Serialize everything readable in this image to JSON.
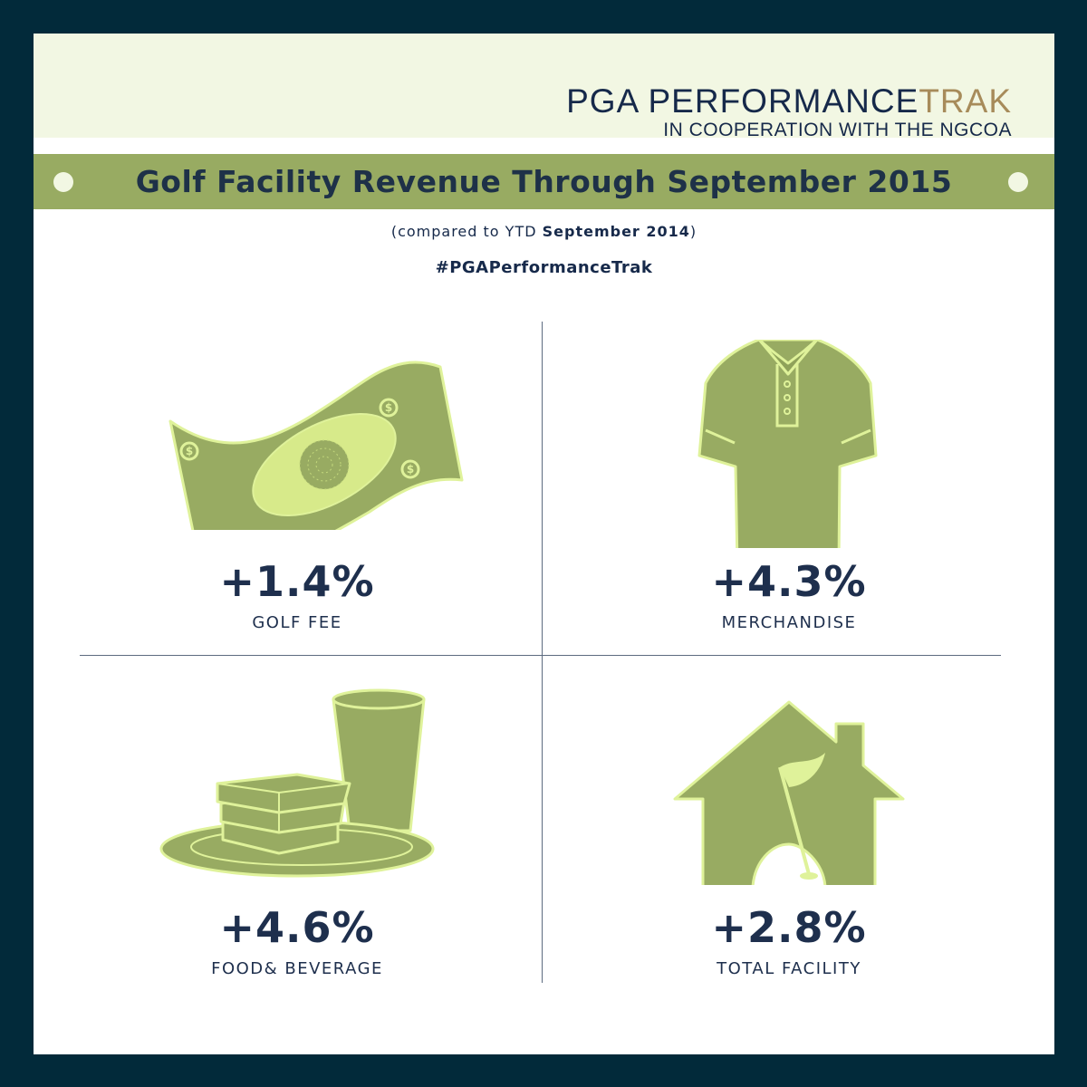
{
  "brand": {
    "name_main": "PGA PERFORMANCE",
    "name_accent": "TRAK",
    "cooperation": "IN COOPERATION WITH THE NGCOA"
  },
  "title": "Golf Facility Revenue Through September 2015",
  "subtitle": {
    "prefix": "(compared to YTD ",
    "bold": "September 2014",
    "suffix": ")"
  },
  "hashtag": "#PGAPerformanceTrak",
  "metrics": [
    {
      "value": "+1.4%",
      "label": "GOLF FEE",
      "icon": "money-bill-icon"
    },
    {
      "value": "+4.3%",
      "label": "MERCHANDISE",
      "icon": "polo-shirt-icon"
    },
    {
      "value": "+4.6%",
      "label": "FOOD& BEVERAGE",
      "icon": "food-beverage-icon"
    },
    {
      "value": "+2.8%",
      "label": "TOTAL FACILITY",
      "icon": "clubhouse-icon"
    }
  ],
  "colors": {
    "frame": "#022a3a",
    "header_band": "#f2f7e3",
    "title_band": "#98ab62",
    "icon_fill": "#98ab62",
    "icon_stroke": "#dff29a",
    "text_navy": "#16294a",
    "accent_gold": "#a78b5a"
  }
}
